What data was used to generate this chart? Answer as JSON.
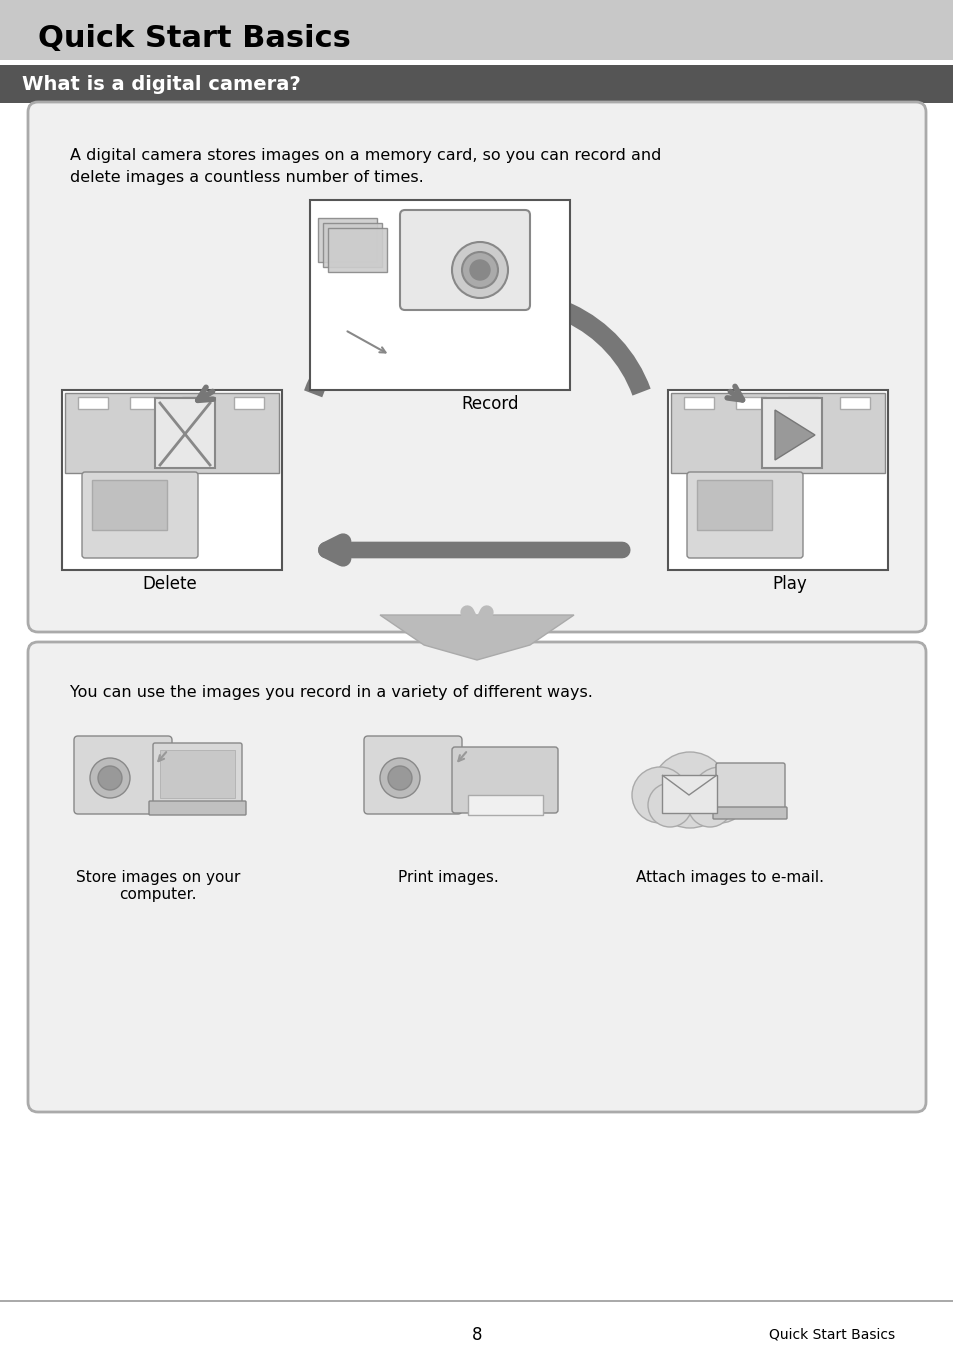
{
  "page_bg": "#ffffff",
  "header_bg": "#c8c8c8",
  "header_text": "Quick Start Basics",
  "header_text_color": "#000000",
  "subheader_bg": "#555555",
  "subheader_text": "What is a digital camera?",
  "subheader_text_color": "#ffffff",
  "box1_bg": "#f0f0f0",
  "box1_border": "#aaaaaa",
  "box1_text": "A digital camera stores images on a memory card, so you can record and\ndelete images a countless number of times.",
  "box1_label_record": "Record",
  "box1_label_delete": "Delete",
  "box1_label_play": "Play",
  "box2_bg": "#f0f0f0",
  "box2_border": "#aaaaaa",
  "box2_text": "You can use the images you record in a variety of different ways.",
  "box2_label1": "Store images on your\ncomputer.",
  "box2_label2": "Print images.",
  "box2_label3": "Attach images to e-mail.",
  "footer_line_color": "#aaaaaa",
  "footer_page": "8",
  "footer_right": "Quick Start Basics",
  "img_placeholder_color": "#dddddd",
  "arrow_color": "#777777"
}
